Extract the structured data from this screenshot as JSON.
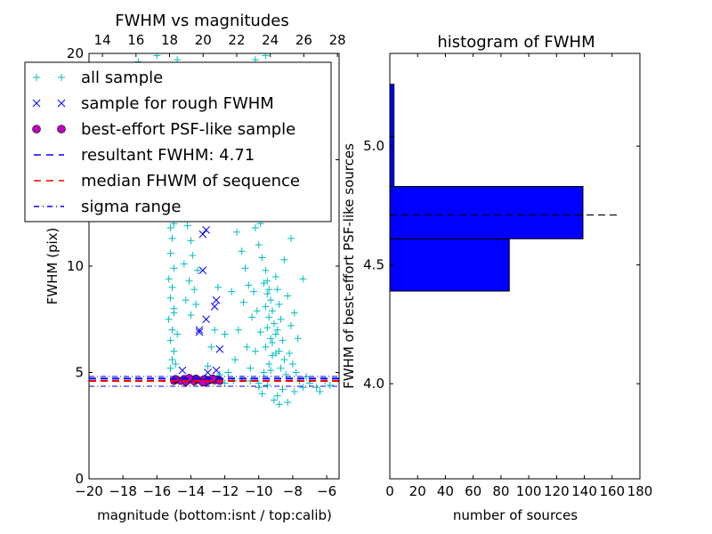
{
  "chart_data": [
    {
      "type": "scatter",
      "title": "FWHM vs magnitudes",
      "xlabel": "magnitude (bottom:isnt / top:calib)",
      "ylabel": "FWHM (pix)",
      "xlim": [
        -20,
        -5.27
      ],
      "ylim": [
        0,
        20
      ],
      "xticks": [
        "−20",
        "−18",
        "−16",
        "−14",
        "−12",
        "−10",
        "−8",
        "−6"
      ],
      "xtick_values": [
        -20,
        -18,
        -16,
        -14,
        -12,
        -10,
        -8,
        -6
      ],
      "yticks": [
        "0",
        "5",
        "10",
        "15",
        "20"
      ],
      "ytick_values": [
        0,
        5,
        10,
        15,
        20
      ],
      "top_xlim": [
        13.2,
        28.1
      ],
      "top_xticks": [
        "14",
        "16",
        "18",
        "20",
        "22",
        "24",
        "26",
        "28"
      ],
      "top_xtick_values": [
        14,
        16,
        18,
        20,
        22,
        24,
        26,
        28
      ],
      "legend_position": "upper-left",
      "legend": [
        {
          "label": "all sample",
          "marker": "+",
          "color": "#00bfbf"
        },
        {
          "label": "sample for rough FWHM",
          "marker": "x",
          "color": "#0000ff"
        },
        {
          "label": "best-effort PSF-like sample",
          "marker": "o",
          "color": "#bf00bf"
        },
        {
          "label": "resultant FWHM: 4.71",
          "line": "dashed",
          "color": "#0000ff"
        },
        {
          "label": "median FHWM of sequence",
          "line": "dashed",
          "color": "#ff0000"
        },
        {
          "label": "sigma range",
          "line": "dashdot",
          "color": "#0000ff"
        }
      ],
      "hlines": {
        "resultant": 4.71,
        "median": 4.6,
        "sigma_low": 4.35,
        "sigma_high": 4.81
      },
      "series": [
        {
          "name": "all sample",
          "points": [
            [
              -15.2,
              5.2
            ],
            [
              -15.1,
              5.6
            ],
            [
              -15.0,
              6.0
            ],
            [
              -15.2,
              6.5
            ],
            [
              -15.1,
              7.0
            ],
            [
              -15.3,
              7.5
            ],
            [
              -15.0,
              8.0
            ],
            [
              -15.2,
              8.5
            ],
            [
              -15.1,
              9.0
            ],
            [
              -15.3,
              9.4
            ],
            [
              -15.0,
              9.9
            ],
            [
              -15.2,
              10.6
            ],
            [
              -15.1,
              11.3
            ],
            [
              -15.2,
              11.8
            ],
            [
              -15.0,
              12.0
            ],
            [
              -14.9,
              5.4
            ],
            [
              -14.8,
              6.8
            ],
            [
              -15.0,
              7.8
            ],
            [
              -14.2,
              11.9
            ],
            [
              -14.0,
              11.2
            ],
            [
              -13.9,
              10.5
            ],
            [
              -14.1,
              9.3
            ],
            [
              -13.8,
              8.9
            ],
            [
              -14.3,
              8.4
            ],
            [
              -13.6,
              9.8
            ],
            [
              -14.0,
              7.7
            ],
            [
              -13.7,
              8.2
            ],
            [
              -14.4,
              10.1
            ],
            [
              -11.3,
              11.6
            ],
            [
              -11.0,
              10.7
            ],
            [
              -10.8,
              9.9
            ],
            [
              -10.6,
              9.1
            ],
            [
              -10.9,
              8.3
            ],
            [
              -10.4,
              7.6
            ],
            [
              -11.2,
              7.0
            ],
            [
              -10.7,
              6.2
            ],
            [
              -11.4,
              5.6
            ],
            [
              -10.5,
              5.2
            ],
            [
              -11.8,
              5.0
            ],
            [
              -12.0,
              6.8
            ],
            [
              -11.6,
              8.8
            ],
            [
              -10.2,
              11.8
            ],
            [
              -10.0,
              11.0
            ],
            [
              -9.8,
              10.4
            ],
            [
              -9.6,
              9.8
            ],
            [
              -9.7,
              9.2
            ],
            [
              -9.5,
              8.7
            ],
            [
              -9.6,
              8.1
            ],
            [
              -9.4,
              7.6
            ],
            [
              -9.5,
              7.1
            ],
            [
              -9.3,
              6.6
            ],
            [
              -9.6,
              6.2
            ],
            [
              -9.2,
              5.8
            ],
            [
              -9.4,
              5.4
            ],
            [
              -9.7,
              5.0
            ],
            [
              -9.9,
              6.9
            ],
            [
              -10.1,
              7.9
            ],
            [
              -10.3,
              8.8
            ],
            [
              -10.2,
              6.0
            ],
            [
              -9.0,
              9.5
            ],
            [
              -8.9,
              8.9
            ],
            [
              -8.8,
              8.2
            ],
            [
              -8.7,
              7.5
            ],
            [
              -8.9,
              7.0
            ],
            [
              -8.6,
              6.5
            ],
            [
              -8.8,
              6.0
            ],
            [
              -8.5,
              5.6
            ],
            [
              -8.7,
              5.2
            ],
            [
              -8.4,
              4.9
            ],
            [
              -8.6,
              4.2
            ],
            [
              -8.9,
              3.9
            ],
            [
              -9.1,
              3.7
            ],
            [
              -8.3,
              3.6
            ],
            [
              -8.8,
              3.5
            ],
            [
              -9.5,
              9.3
            ],
            [
              -9.4,
              8.9
            ],
            [
              -9.3,
              8.4
            ],
            [
              -9.2,
              7.9
            ],
            [
              -9.1,
              7.3
            ],
            [
              -9.0,
              6.8
            ],
            [
              -9.2,
              6.4
            ],
            [
              -9.0,
              5.9
            ],
            [
              -9.3,
              5.1
            ],
            [
              -9.5,
              4.4
            ],
            [
              -9.8,
              4.0
            ],
            [
              -10.0,
              4.3
            ],
            [
              -8.2,
              5.9
            ],
            [
              -8.0,
              5.4
            ],
            [
              -7.8,
              5.0
            ],
            [
              -7.6,
              4.6
            ],
            [
              -7.9,
              4.1
            ],
            [
              -7.4,
              4.3
            ],
            [
              -7.2,
              4.8
            ],
            [
              -7.0,
              4.5
            ],
            [
              -6.6,
              4.3
            ],
            [
              -6.4,
              4.1
            ],
            [
              -6.1,
              4.6
            ],
            [
              -5.8,
              4.4
            ],
            [
              -8.1,
              11.3
            ],
            [
              -7.4,
              9.4
            ],
            [
              -8.3,
              8.6
            ],
            [
              -7.9,
              7.8
            ],
            [
              -8.1,
              7.2
            ],
            [
              -7.7,
              6.6
            ],
            [
              -8.5,
              10.3
            ],
            [
              -9.9,
              12.0
            ],
            [
              -12.0,
              4.5
            ],
            [
              -11.5,
              4.6
            ],
            [
              -11.0,
              4.7
            ],
            [
              -10.5,
              4.6
            ],
            [
              -10.0,
              4.5
            ],
            [
              -12.3,
              4.9
            ],
            [
              -13.0,
              5.3
            ],
            [
              -12.8,
              6.2
            ],
            [
              -12.6,
              7.0
            ],
            [
              -12.4,
              9.0
            ],
            [
              -17.1,
              19.6
            ],
            [
              -16.0,
              19.9
            ],
            [
              -14.8,
              19.7
            ],
            [
              -15.2,
              19.4
            ],
            [
              -10.2,
              19.7
            ],
            [
              -9.6,
              19.9
            ]
          ]
        },
        {
          "name": "sample for rough FWHM",
          "points": [
            [
              -14.5,
              5.1
            ],
            [
              -13.0,
              5.0
            ],
            [
              -12.5,
              5.1
            ],
            [
              -13.5,
              6.9
            ],
            [
              -13.5,
              7.0
            ],
            [
              -12.6,
              8.1
            ],
            [
              -12.5,
              8.4
            ],
            [
              -13.1,
              7.5
            ],
            [
              -12.3,
              6.1
            ],
            [
              -13.3,
              11.5
            ],
            [
              -13.1,
              11.7
            ],
            [
              -13.3,
              9.8
            ]
          ]
        },
        {
          "name": "best-effort PSF-like sample",
          "points": [
            [
              -15.0,
              4.6
            ],
            [
              -14.8,
              4.65
            ],
            [
              -14.6,
              4.6
            ],
            [
              -14.4,
              4.7
            ],
            [
              -14.2,
              4.62
            ],
            [
              -14.0,
              4.68
            ],
            [
              -13.8,
              4.58
            ],
            [
              -13.6,
              4.66
            ],
            [
              -13.4,
              4.62
            ],
            [
              -13.2,
              4.7
            ],
            [
              -13.0,
              4.6
            ],
            [
              -12.8,
              4.66
            ],
            [
              -12.6,
              4.62
            ],
            [
              -12.4,
              4.68
            ],
            [
              -12.3,
              4.6
            ],
            [
              -14.9,
              4.7
            ],
            [
              -14.3,
              4.55
            ],
            [
              -13.7,
              4.72
            ],
            [
              -13.1,
              4.55
            ],
            [
              -12.7,
              4.72
            ],
            [
              -14.1,
              4.75
            ],
            [
              -13.3,
              4.52
            ]
          ]
        }
      ]
    },
    {
      "type": "bar",
      "orientation": "horizontal",
      "title": "histogram of FWHM",
      "xlabel": "number of sources",
      "ylabel": "FWHM of best-effort PSF-like sources",
      "xlim": [
        0,
        180
      ],
      "ylim": [
        3.6,
        5.39
      ],
      "xticks": [
        "0",
        "20",
        "40",
        "60",
        "80",
        "100",
        "120",
        "140",
        "160",
        "180"
      ],
      "xtick_values": [
        0,
        20,
        40,
        60,
        80,
        100,
        120,
        140,
        160,
        180
      ],
      "yticks": [
        "4.0",
        "4.5",
        "5.0"
      ],
      "ytick_values": [
        4.0,
        4.5,
        5.0
      ],
      "bins": [
        [
          4.39,
          4.61
        ],
        [
          4.61,
          4.83
        ],
        [
          4.83,
          5.04
        ],
        [
          5.04,
          5.26
        ]
      ],
      "values": [
        86,
        139,
        3,
        3
      ],
      "bar_color": "#0000ff",
      "hline": {
        "value": 4.71,
        "xmax": 165,
        "style": "dashed",
        "color": "#000000"
      }
    }
  ]
}
